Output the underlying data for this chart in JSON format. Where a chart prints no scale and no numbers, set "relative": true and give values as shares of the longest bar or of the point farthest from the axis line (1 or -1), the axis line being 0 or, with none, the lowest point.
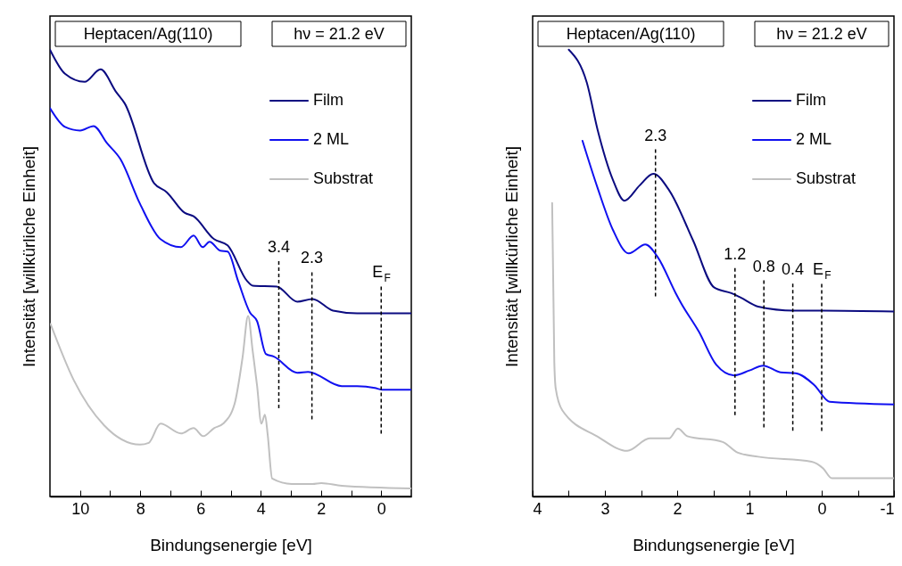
{
  "chart_data": [
    {
      "type": "line",
      "relative": true,
      "xlabel": "Bindungsenergie [eV]",
      "ylabel": "Intensität [willkürliche Einheit]",
      "xlim": [
        11,
        -1
      ],
      "xticks": [
        10,
        {
          "value": 9,
          "label": null
        },
        8,
        {
          "value": 7,
          "label": null
        },
        6,
        {
          "value": 5,
          "label": null
        },
        4,
        {
          "value": 3,
          "label": null
        },
        2,
        {
          "value": 1,
          "label": null
        },
        0
      ],
      "tick_labels": "x",
      "grid": false,
      "legend": "top right",
      "line_style": "solid",
      "marker": "none",
      "annotations": [
        "Heptacen/Ag(110)",
        "hν = 21.2 eV"
      ],
      "ref_lines": [
        {
          "axis": "x",
          "value": 3.4,
          "label": "3.4",
          "line_style": "dashed"
        },
        {
          "axis": "x",
          "value": 2.3,
          "label": "2.3",
          "line_style": "dashed"
        },
        {
          "axis": "x",
          "value": 0,
          "label": "E$_{F}$",
          "line_style": "dashed"
        }
      ],
      "series": [
        {
          "name": "Film",
          "color": "#0b0b80",
          "x": [
            11,
            10.5,
            9.85,
            9.32,
            8.81,
            8.52,
            7.54,
            7.12,
            6.53,
            6.23,
            5.55,
            5.1,
            4.45,
            4.27,
            3.47,
            2.79,
            2.28,
            1.6,
            0.8,
            -1
          ],
          "values": [
            1.0,
            0.946,
            0.928,
            0.956,
            0.906,
            0.88,
            0.701,
            0.681,
            0.635,
            0.627,
            0.576,
            0.562,
            0.482,
            0.472,
            0.47,
            0.436,
            0.442,
            0.416,
            0.41,
            0.41
          ]
        },
        {
          "name": "2 ML",
          "color": "#1010f0",
          "x": [
            11,
            10.5,
            10.0,
            9.55,
            9.11,
            8.66,
            8.01,
            7.33,
            6.65,
            6.23,
            5.93,
            5.7,
            5.34,
            5.1,
            4.75,
            4.36,
            4.12,
            3.83,
            3.56,
            2.79,
            2.43,
            1.31,
            0.8,
            0.21,
            -0.03,
            -1
          ],
          "values": [
            0.869,
            0.827,
            0.819,
            0.829,
            0.791,
            0.755,
            0.655,
            0.576,
            0.558,
            0.584,
            0.558,
            0.57,
            0.55,
            0.548,
            0.482,
            0.412,
            0.392,
            0.319,
            0.313,
            0.277,
            0.279,
            0.247,
            0.247,
            0.243,
            0.239,
            0.239
          ]
        },
        {
          "name": "Substrat",
          "color": "#c0c0c0",
          "x": [
            10.98,
            10.2,
            9.2,
            8.01,
            7.72,
            7.33,
            6.65,
            6.23,
            5.91,
            5.55,
            5.25,
            4.87,
            4.6,
            4.42,
            4.27,
            4.12,
            3.98,
            3.86,
            3.77,
            3.62,
            2.97,
            2.28,
            1.99,
            1.31,
            -1
          ],
          "values": [
            0.386,
            0.259,
            0.159,
            0.116,
            0.12,
            0.163,
            0.141,
            0.153,
            0.135,
            0.153,
            0.163,
            0.207,
            0.313,
            0.404,
            0.327,
            0.247,
            0.163,
            0.183,
            0.139,
            0.04,
            0.028,
            0.028,
            0.03,
            0.024,
            0.018
          ]
        }
      ]
    },
    {
      "type": "line",
      "relative": true,
      "xlabel": "Bindungsenergie [eV]",
      "ylabel": "Intensität [willkürliche Einheit]",
      "xlim": [
        4,
        -1
      ],
      "xticks": [
        4,
        {
          "value": 3.5,
          "label": null
        },
        3,
        {
          "value": 2.5,
          "label": null
        },
        2,
        {
          "value": 1.5,
          "label": null
        },
        1,
        {
          "value": 0.5,
          "label": null
        },
        0,
        {
          "value": -0.5,
          "label": null
        },
        -1
      ],
      "tick_labels": "x",
      "grid": false,
      "legend": "top right",
      "line_style": "solid",
      "marker": "none",
      "annotations": [
        "Heptacen/Ag(110)",
        "hν = 21.2 eV"
      ],
      "ref_lines": [
        {
          "axis": "x",
          "value": 2.3,
          "label": "2.3",
          "line_style": "dashed"
        },
        {
          "axis": "x",
          "value": 1.2,
          "label": "1.2",
          "line_style": "dashed"
        },
        {
          "axis": "x",
          "value": 0.8,
          "label": "0.8",
          "line_style": "dashed"
        },
        {
          "axis": "x",
          "value": 0.4,
          "label": "0.4",
          "line_style": "dashed"
        },
        {
          "axis": "x",
          "value": 0,
          "label": "E$_{F}$",
          "line_style": "dashed"
        }
      ],
      "series": [
        {
          "name": "Film",
          "color": "#0b0b80",
          "x": [
            3.5,
            3.25,
            3.1,
            2.89,
            2.73,
            2.52,
            2.33,
            2.11,
            1.78,
            1.49,
            1.25,
            1.12,
            0.88,
            0.38,
            -0.02,
            -1
          ],
          "values": [
            1.0,
            0.926,
            0.82,
            0.709,
            0.662,
            0.696,
            0.722,
            0.685,
            0.573,
            0.468,
            0.455,
            0.445,
            0.425,
            0.416,
            0.416,
            0.414
          ]
        },
        {
          "name": "2 ML",
          "color": "#1010f0",
          "x": [
            3.31,
            3.1,
            2.89,
            2.67,
            2.44,
            2.27,
            2.02,
            1.95,
            1.7,
            1.46,
            1.21,
            1.0,
            0.81,
            0.57,
            0.36,
            0.1,
            -0.11,
            -1
          ],
          "values": [
            0.796,
            0.69,
            0.597,
            0.544,
            0.564,
            0.536,
            0.455,
            0.434,
            0.369,
            0.295,
            0.271,
            0.282,
            0.293,
            0.278,
            0.276,
            0.249,
            0.212,
            0.206
          ]
        },
        {
          "name": "Substrat",
          "color": "#c0c0c0",
          "x": [
            3.73,
            3.7,
            3.68,
            3.59,
            3.1,
            2.69,
            2.38,
            2.11,
            1.99,
            1.86,
            1.37,
            1.16,
            0.88,
            0.14,
            -0.02,
            -0.14,
            -1
          ],
          "values": [
            0.657,
            0.3,
            0.241,
            0.193,
            0.134,
            0.102,
            0.13,
            0.13,
            0.152,
            0.135,
            0.122,
            0.098,
            0.089,
            0.078,
            0.063,
            0.041,
            0.041
          ]
        }
      ]
    }
  ]
}
